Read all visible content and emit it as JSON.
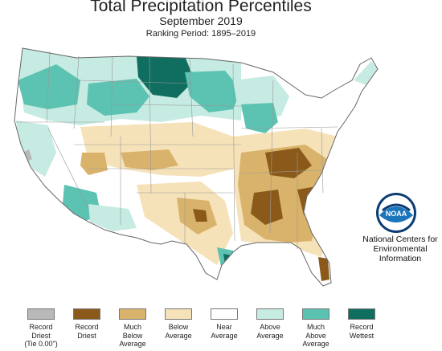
{
  "header": {
    "title": "Total Precipitation Percentiles",
    "subtitle": "September 2019",
    "period": "Ranking Period: 1895–2019"
  },
  "logo": {
    "name": "NOAA",
    "lines": [
      "National Centers for",
      "Environmental",
      "Information"
    ]
  },
  "colors": {
    "record_driest": "#b9b9b9",
    "record_driest_dark": "#8b5a1b",
    "much_below": "#d9b36b",
    "below": "#f6e2b8",
    "near": "#ffffff",
    "above": "#c6ebe2",
    "much_above": "#5cc2b1",
    "record_wettest": "#0f6e5f",
    "land_near": "#ffffff",
    "state_border": "#999999",
    "outline": "#666666",
    "noaa_blue": "#1b75bb",
    "noaa_dark": "#0b3d74"
  },
  "legend": [
    {
      "label": "Record\nDriest\n(Tie 0.00\")",
      "color": "#b9b9b9"
    },
    {
      "label": "Record\nDriest",
      "color": "#8b5a1b"
    },
    {
      "label": "Much\nBelow\nAverage",
      "color": "#d9b36b"
    },
    {
      "label": "Below\nAverage",
      "color": "#f6e2b8"
    },
    {
      "label": "Near\nAverage",
      "color": "#ffffff"
    },
    {
      "label": "Above\nAverage",
      "color": "#c6ebe2"
    },
    {
      "label": "Much\nAbove\nAverage",
      "color": "#5cc2b1"
    },
    {
      "label": "Record\nWettest",
      "color": "#0f6e5f"
    }
  ]
}
